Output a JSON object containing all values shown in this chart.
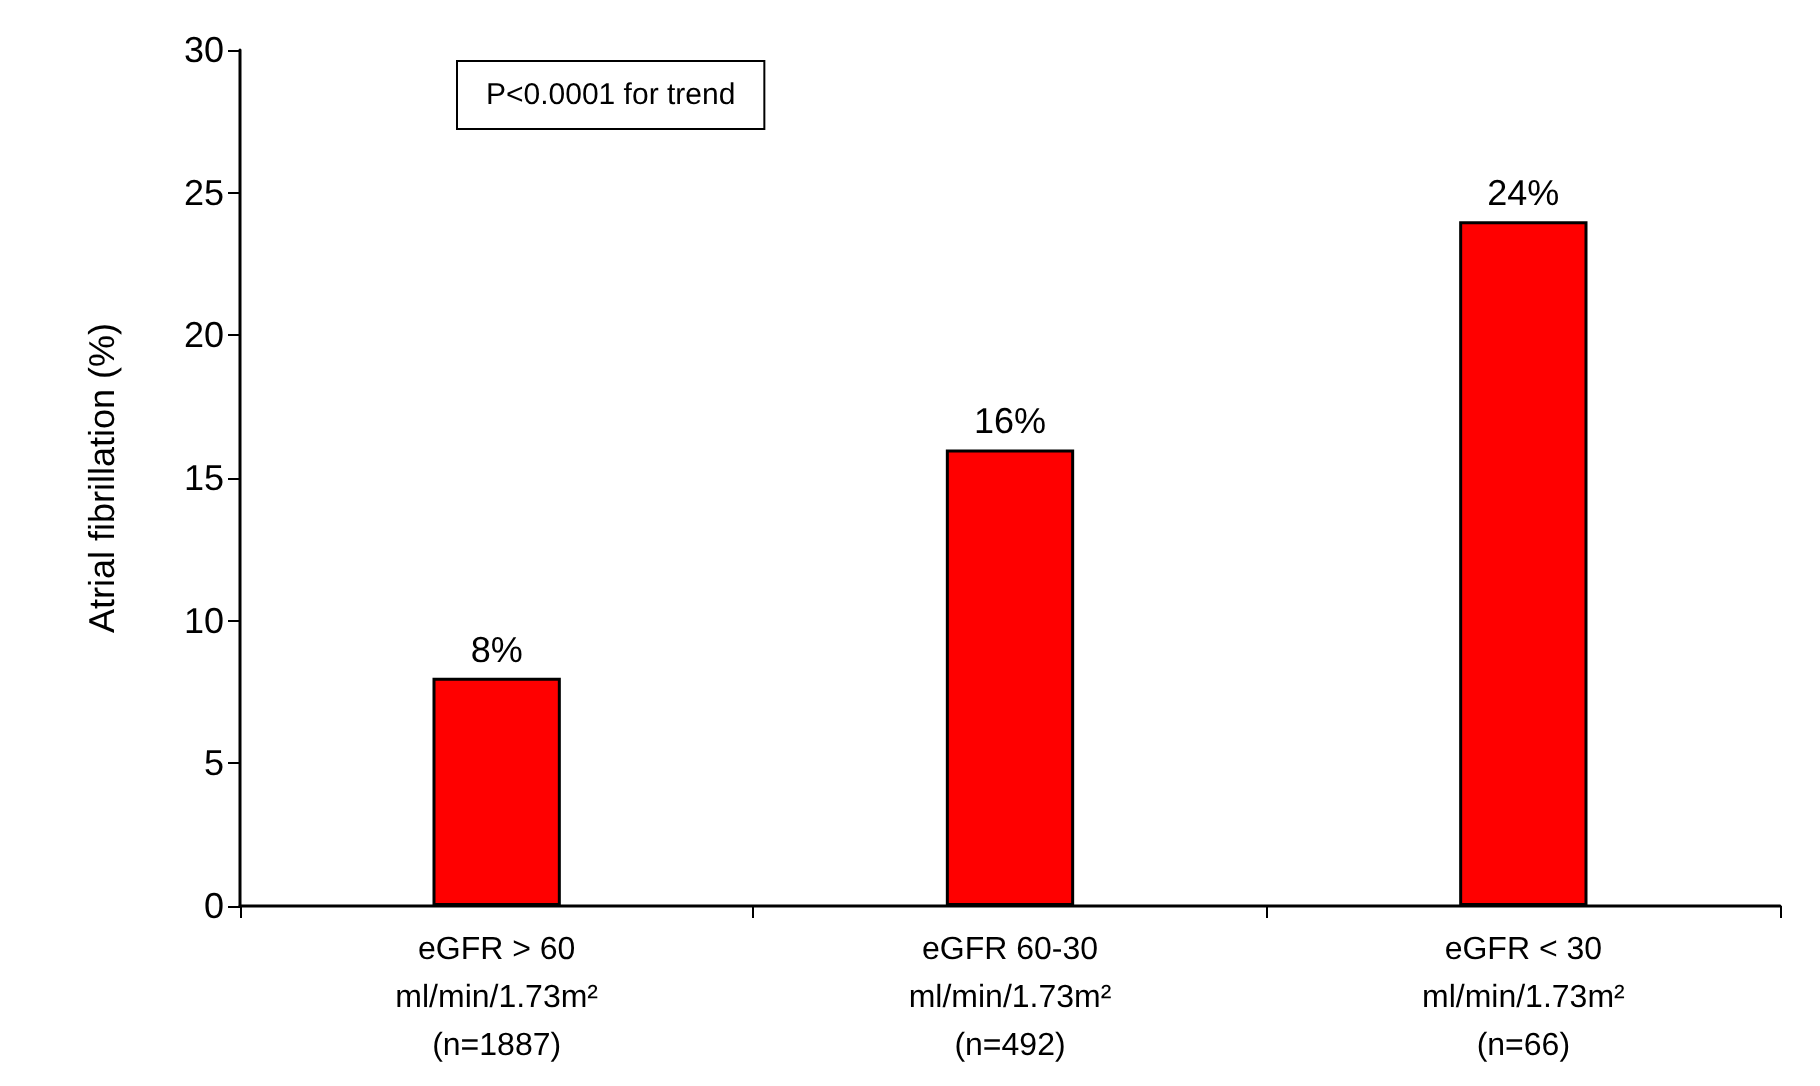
{
  "chart_data": {
    "type": "bar",
    "ylabel": "Atrial fibrillation (%)",
    "categories": [
      "eGFR > 60\nml/min/1.73m²\n(n=1887)",
      "eGFR 60-30\nml/min/1.73m²\n(n=492)",
      "eGFR < 30\nml/min/1.73m²\n(n=66)"
    ],
    "values": [
      8,
      16,
      24
    ],
    "value_labels": [
      "8%",
      "16%",
      "24%"
    ],
    "color": "#ff0000",
    "ylim": [
      0,
      30
    ],
    "yticks": [
      0,
      5,
      10,
      15,
      20,
      25,
      30
    ],
    "grid": false,
    "annotations": [
      "P<0.0001 for trend"
    ]
  }
}
